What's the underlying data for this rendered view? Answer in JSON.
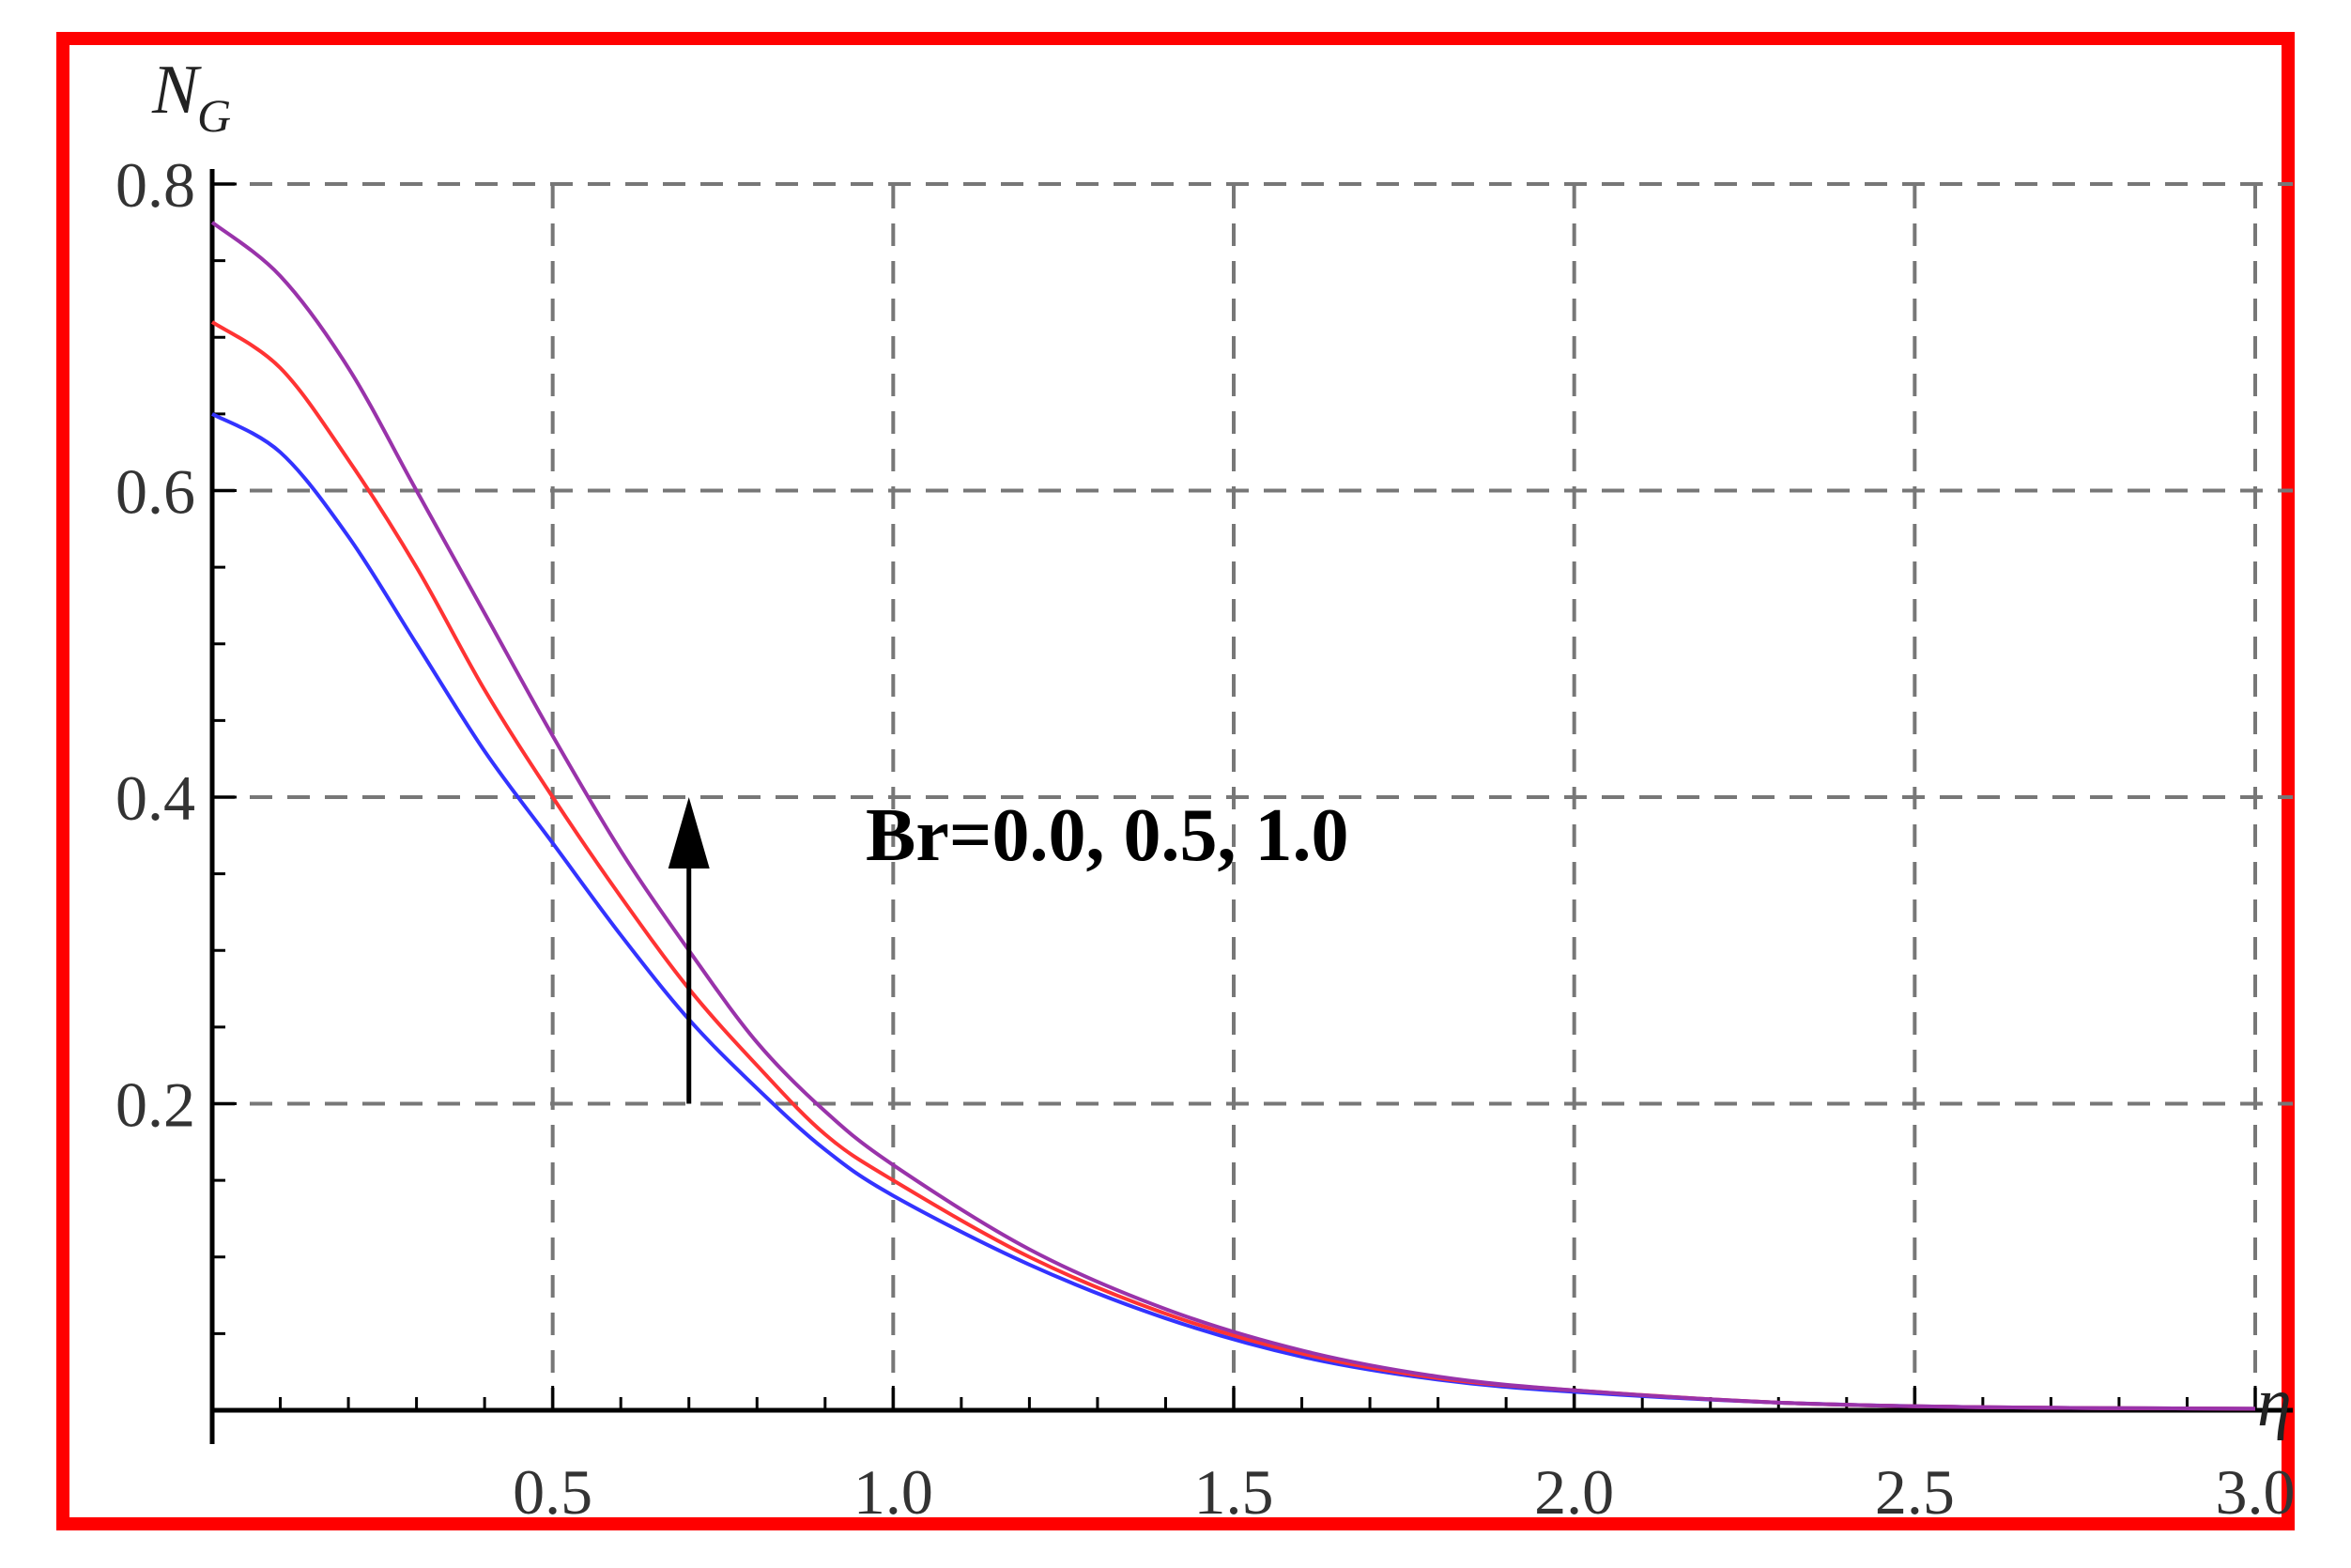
{
  "chart_data": {
    "type": "line",
    "title": "",
    "xlabel": "η",
    "ylabel": {
      "main": "N",
      "sub": "G"
    },
    "xlim": [
      0,
      3.0
    ],
    "ylim": [
      0,
      0.8
    ],
    "xticks": [
      0.5,
      1.0,
      1.5,
      2.0,
      2.5,
      3.0
    ],
    "xtick_labels": [
      "0.5",
      "1.0",
      "1.5",
      "2.0",
      "2.5",
      "3.0"
    ],
    "yticks": [
      0.2,
      0.4,
      0.6,
      0.8
    ],
    "ytick_labels": [
      "0.2",
      "0.4",
      "0.6",
      "0.8"
    ],
    "grid": true,
    "x": [
      0.0,
      0.1,
      0.2,
      0.3,
      0.4,
      0.5,
      0.6,
      0.7,
      0.8,
      0.9,
      1.0,
      1.2,
      1.4,
      1.6,
      1.8,
      2.0,
      2.3,
      2.6,
      3.0
    ],
    "series": [
      {
        "color": "#3333ff",
        "values": [
          0.65,
          0.625,
          0.57,
          0.5,
          0.43,
          0.37,
          0.31,
          0.255,
          0.21,
          0.17,
          0.14,
          0.095,
          0.06,
          0.035,
          0.02,
          0.012,
          0.005,
          0.002,
          0.001
        ]
      },
      {
        "color": "#ff3333",
        "values": [
          0.71,
          0.68,
          0.62,
          0.55,
          0.47,
          0.4,
          0.335,
          0.275,
          0.225,
          0.18,
          0.15,
          0.1,
          0.063,
          0.037,
          0.021,
          0.013,
          0.005,
          0.002,
          0.001
        ]
      },
      {
        "color": "#9933aa",
        "values": [
          0.775,
          0.74,
          0.68,
          0.6,
          0.52,
          0.44,
          0.365,
          0.3,
          0.24,
          0.195,
          0.16,
          0.105,
          0.066,
          0.039,
          0.022,
          0.013,
          0.005,
          0.002,
          0.001
        ]
      }
    ],
    "annotation": {
      "text": "Br=0.0, 0.5, 1.0",
      "arrow_x": 0.7,
      "arrow_y_from": 0.2,
      "arrow_y_to": 0.4
    }
  }
}
